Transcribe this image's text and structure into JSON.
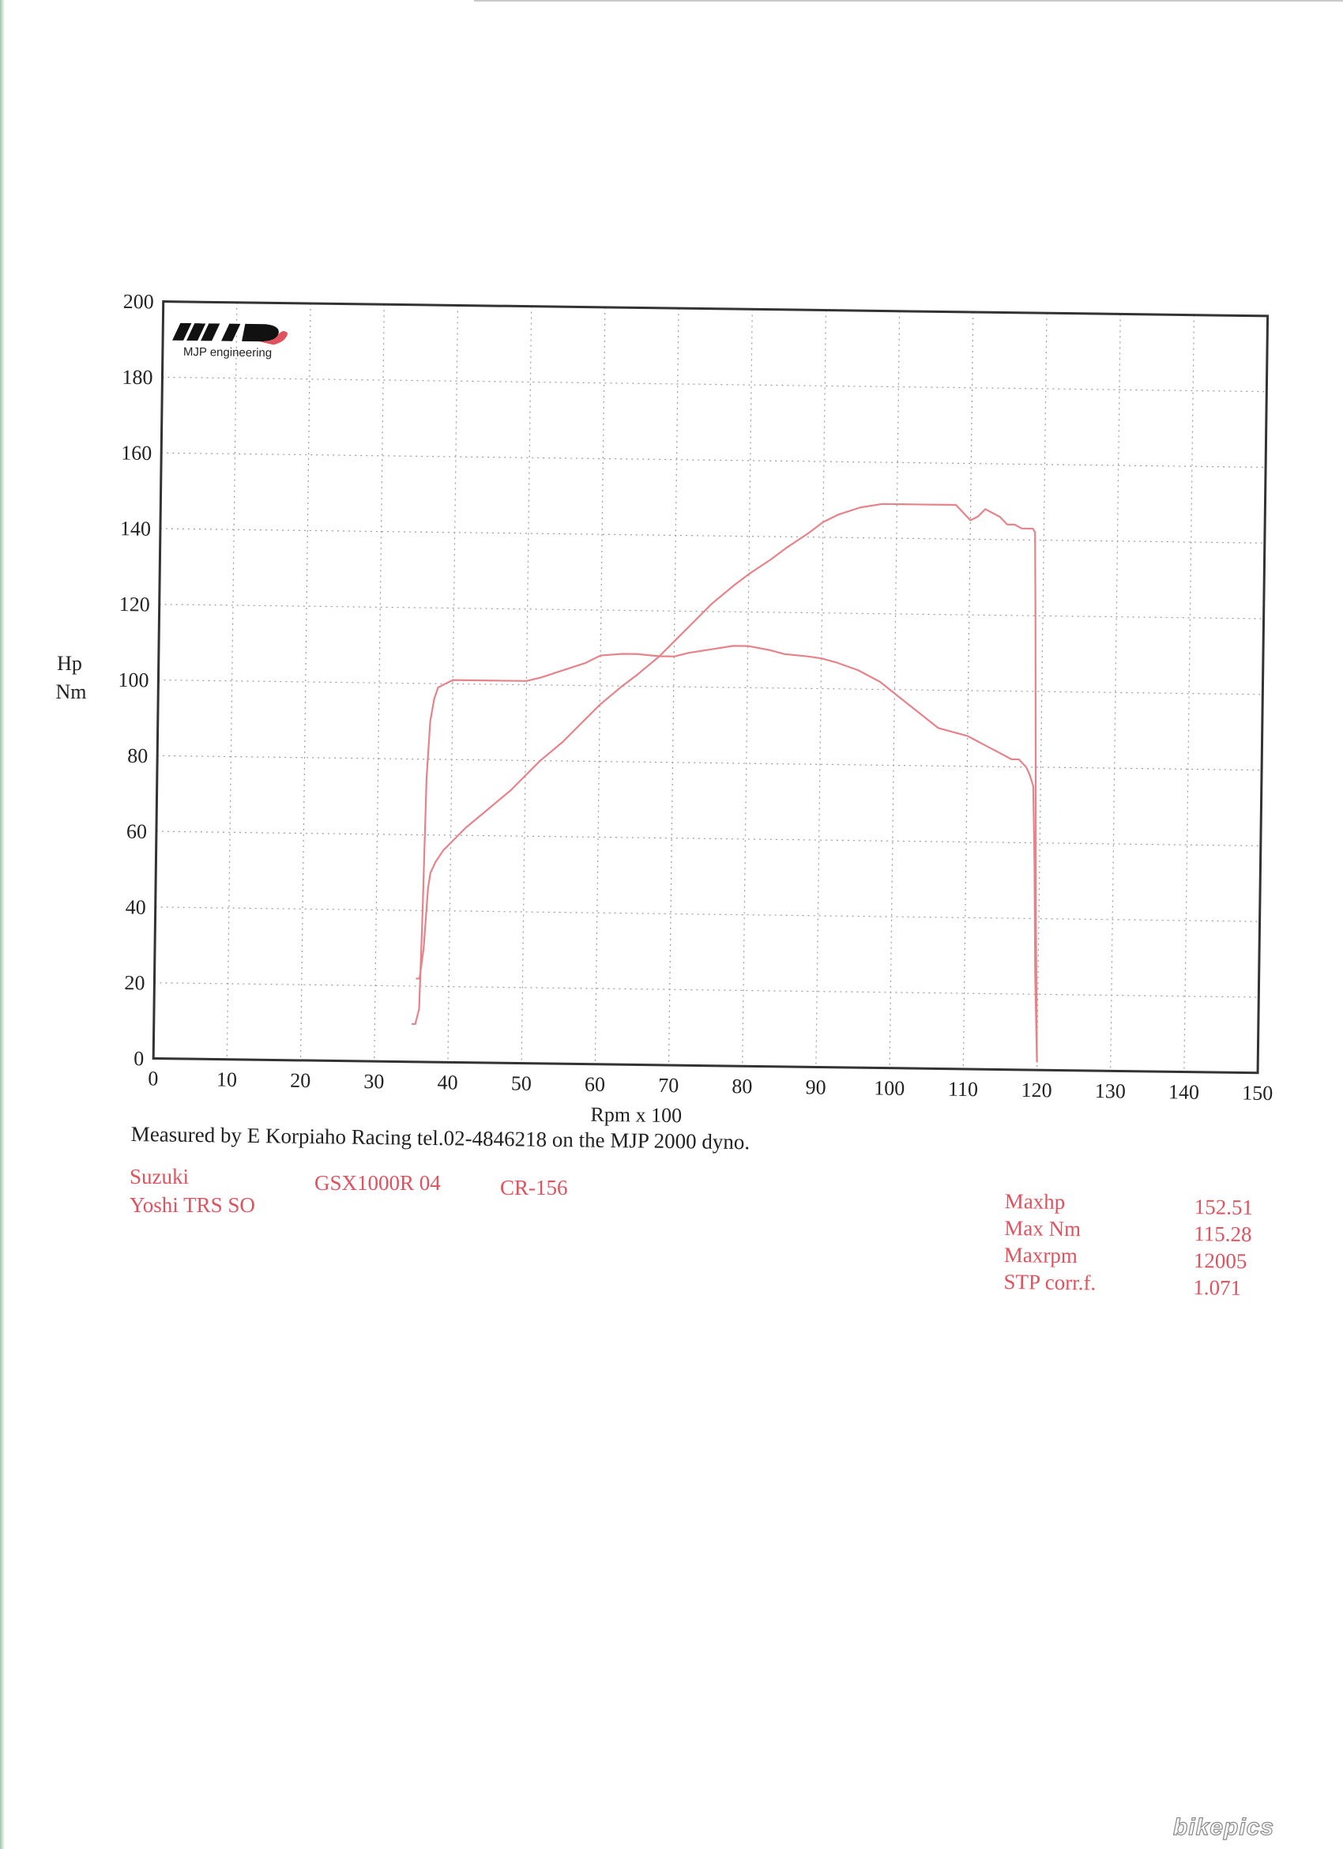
{
  "logo": {
    "brand": "MJP",
    "tagline": "MJP engineering"
  },
  "chart_data": {
    "type": "line",
    "title": "",
    "xlabel": "Rpm x 100",
    "ylabel_lines": [
      "Hp",
      "Nm"
    ],
    "xlim": [
      0,
      150
    ],
    "ylim": [
      0,
      200
    ],
    "x_ticks": [
      0,
      10,
      20,
      30,
      40,
      50,
      60,
      70,
      80,
      90,
      100,
      110,
      120,
      130,
      140,
      150
    ],
    "y_ticks": [
      0,
      20,
      40,
      60,
      80,
      100,
      120,
      140,
      160,
      180,
      200
    ],
    "grid": true,
    "series": [
      {
        "color": "#e6838a",
        "x": [
          35.5,
          36,
          36.5,
          37,
          37.3,
          38,
          39,
          40,
          42,
          45,
          48,
          50,
          52,
          55,
          58,
          60,
          63,
          65,
          68,
          70,
          72,
          75,
          78,
          80,
          83,
          85,
          88,
          90,
          92,
          95,
          98,
          100,
          102,
          104,
          106,
          108,
          110,
          111,
          112,
          113,
          114,
          115,
          116,
          117,
          118,
          118.5,
          118.8,
          119,
          119.3,
          119.6,
          120
        ],
        "y": [
          22,
          22,
          30,
          46,
          50,
          53,
          56,
          58,
          62,
          67,
          72,
          76,
          80,
          85,
          91,
          95,
          100,
          103,
          108,
          112,
          116,
          122,
          127,
          130,
          134,
          137,
          141,
          144,
          146,
          148,
          149,
          149,
          149,
          149,
          149,
          149,
          145,
          146,
          148,
          147,
          146,
          144,
          144,
          143,
          143,
          143,
          142,
          120,
          80,
          40,
          2
        ]
      },
      {
        "color": "#e6838a",
        "x": [
          35,
          35.5,
          36,
          36.3,
          36.6,
          37,
          37.5,
          38,
          39,
          40,
          42,
          45,
          48,
          50,
          52,
          55,
          58,
          60,
          63,
          65,
          68,
          70,
          72,
          75,
          78,
          80,
          83,
          85,
          88,
          90,
          92,
          95,
          98,
          100,
          102,
          104,
          106,
          108,
          110,
          111,
          112,
          113,
          114,
          115,
          116,
          117,
          118,
          118.5,
          119,
          119.3,
          119.6,
          120
        ],
        "y": [
          10,
          10,
          14,
          40,
          75,
          90,
          96,
          99,
          100,
          101,
          101,
          101,
          101,
          101,
          102,
          104,
          106,
          108,
          108.5,
          108.5,
          108,
          108,
          109,
          110,
          111,
          111,
          110,
          109,
          108.5,
          108,
          107,
          105,
          102,
          99,
          96,
          93,
          90,
          89,
          88,
          87,
          86,
          85,
          84,
          83,
          82,
          82,
          80,
          78,
          75,
          55,
          25,
          2
        ]
      }
    ]
  },
  "footer": {
    "measured_by": "Measured by E Korpiaho Racing tel.02-4846218 on the MJP 2000 dyno.",
    "vehicle": {
      "make": "Suzuki",
      "model": "GSX1000R 04",
      "code": "CR-156",
      "setup": "Yoshi TRS SO"
    },
    "stats": [
      {
        "label": "Maxhp",
        "value": "152.51"
      },
      {
        "label": "Max Nm",
        "value": "115.28"
      },
      {
        "label": "Maxrpm",
        "value": "12005"
      },
      {
        "label": "STP corr.f.",
        "value": "1.071"
      }
    ]
  },
  "watermark": "bikepics",
  "colors": {
    "curve": "#e6838a",
    "text_red": "#e0525e",
    "frame": "#333333",
    "grid": "#9a9a9a"
  }
}
